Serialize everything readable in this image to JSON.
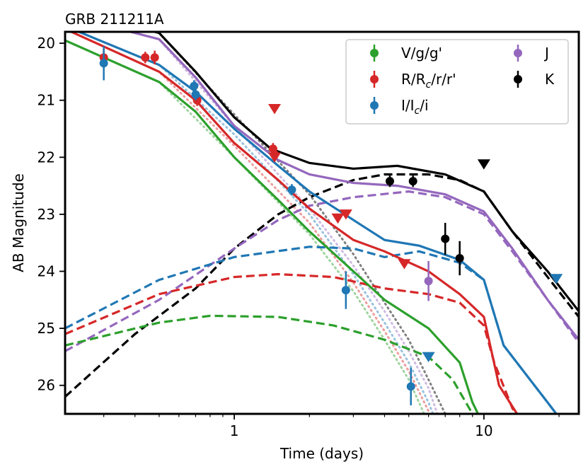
{
  "chart_data": {
    "type": "line",
    "title": "GRB 211211A",
    "xlabel": "Time (days)",
    "ylabel": "AB Magnitude",
    "xscale": "log",
    "xlim": [
      0.21,
      24
    ],
    "ylim": [
      26.5,
      19.8
    ],
    "x_ticks": [
      {
        "value": 1,
        "label": "1"
      },
      {
        "value": 10,
        "label": "10"
      }
    ],
    "y_ticks": [
      {
        "value": 20,
        "label": "20"
      },
      {
        "value": 21,
        "label": "21"
      },
      {
        "value": 22,
        "label": "22"
      },
      {
        "value": 23,
        "label": "23"
      },
      {
        "value": 24,
        "label": "24"
      },
      {
        "value": 25,
        "label": "25"
      },
      {
        "value": 26,
        "label": "26"
      }
    ],
    "grid": false,
    "legend_position": "top-right",
    "colors": {
      "V": "#2ca02c",
      "R": "#d62728",
      "I": "#1f77b4",
      "J": "#9467bd",
      "K": "#000000",
      "afterglow_dotted": "#808080"
    },
    "legend": [
      {
        "key": "V",
        "label": "V/g/g'"
      },
      {
        "key": "R",
        "label": "R/R",
        "sub": "c",
        "suffix": "/r/r'"
      },
      {
        "key": "I",
        "label": "I/I",
        "sub": "c",
        "suffix": "/i"
      },
      {
        "key": "J",
        "label": "J"
      },
      {
        "key": "K",
        "label": "K"
      }
    ],
    "total_curves": [
      {
        "key": "K",
        "points": [
          [
            0.21,
            19.4
          ],
          [
            0.5,
            19.82
          ],
          [
            0.7,
            20.5
          ],
          [
            1.0,
            21.3
          ],
          [
            1.4,
            21.85
          ],
          [
            2.0,
            22.1
          ],
          [
            3.0,
            22.2
          ],
          [
            4.5,
            22.15
          ],
          [
            7.0,
            22.3
          ],
          [
            10.0,
            22.6
          ],
          [
            13.0,
            23.3
          ],
          [
            18.0,
            24.0
          ],
          [
            24.0,
            24.7
          ]
        ]
      },
      {
        "key": "J",
        "points": [
          [
            0.21,
            19.5
          ],
          [
            0.5,
            19.93
          ],
          [
            0.7,
            20.6
          ],
          [
            1.0,
            21.45
          ],
          [
            1.5,
            22.05
          ],
          [
            2.0,
            22.3
          ],
          [
            3.0,
            22.45
          ],
          [
            4.5,
            22.5
          ],
          [
            7.0,
            22.65
          ],
          [
            10.0,
            22.95
          ],
          [
            13.0,
            23.6
          ],
          [
            18.0,
            24.5
          ],
          [
            24.0,
            25.2
          ]
        ]
      },
      {
        "key": "I",
        "points": [
          [
            0.21,
            19.7
          ],
          [
            0.5,
            20.38
          ],
          [
            0.7,
            20.85
          ],
          [
            1.0,
            21.5
          ],
          [
            1.5,
            22.15
          ],
          [
            2.0,
            22.6
          ],
          [
            3.0,
            23.1
          ],
          [
            4.0,
            23.45
          ],
          [
            5.5,
            23.55
          ],
          [
            8.0,
            23.8
          ],
          [
            10.0,
            24.15
          ],
          [
            12.0,
            25.3
          ],
          [
            18.0,
            26.3
          ],
          [
            22.0,
            26.8
          ]
        ]
      },
      {
        "key": "R",
        "points": [
          [
            0.21,
            19.75
          ],
          [
            0.5,
            20.5
          ],
          [
            0.7,
            21.0
          ],
          [
            1.0,
            21.75
          ],
          [
            1.5,
            22.4
          ],
          [
            2.0,
            22.9
          ],
          [
            3.0,
            23.45
          ],
          [
            4.0,
            23.65
          ],
          [
            6.0,
            24.0
          ],
          [
            8.0,
            24.4
          ],
          [
            10.0,
            24.8
          ],
          [
            11.5,
            26.0
          ],
          [
            15.0,
            26.8
          ]
        ]
      },
      {
        "key": "V",
        "points": [
          [
            0.21,
            19.95
          ],
          [
            0.5,
            20.68
          ],
          [
            0.7,
            21.2
          ],
          [
            1.0,
            22.0
          ],
          [
            1.5,
            22.75
          ],
          [
            2.0,
            23.3
          ],
          [
            3.0,
            24.0
          ],
          [
            4.0,
            24.5
          ],
          [
            6.0,
            25.0
          ],
          [
            8.0,
            25.6
          ],
          [
            9.0,
            26.3
          ],
          [
            10.5,
            26.9
          ]
        ]
      }
    ],
    "kilonova_curves": [
      {
        "key": "K",
        "points": [
          [
            0.21,
            26.2
          ],
          [
            0.4,
            25.1
          ],
          [
            0.7,
            24.3
          ],
          [
            1.0,
            23.6
          ],
          [
            1.5,
            23.0
          ],
          [
            2.0,
            22.7
          ],
          [
            3.0,
            22.4
          ],
          [
            4.0,
            22.3
          ],
          [
            6.0,
            22.3
          ],
          [
            8.0,
            22.4
          ],
          [
            10.0,
            22.6
          ],
          [
            13.0,
            23.3
          ],
          [
            18.0,
            24.1
          ],
          [
            24.0,
            24.8
          ]
        ]
      },
      {
        "key": "J",
        "points": [
          [
            0.21,
            25.4
          ],
          [
            0.5,
            24.5
          ],
          [
            1.0,
            23.6
          ],
          [
            1.5,
            23.1
          ],
          [
            2.0,
            22.85
          ],
          [
            3.0,
            22.7
          ],
          [
            5.0,
            22.6
          ],
          [
            7.0,
            22.7
          ],
          [
            10.0,
            23.0
          ],
          [
            13.0,
            23.65
          ],
          [
            18.0,
            24.5
          ],
          [
            24.0,
            25.25
          ]
        ]
      },
      {
        "key": "I",
        "points": [
          [
            0.21,
            25.0
          ],
          [
            0.5,
            24.15
          ],
          [
            1.0,
            23.75
          ],
          [
            2.0,
            23.57
          ],
          [
            3.0,
            23.6
          ],
          [
            4.0,
            23.75
          ],
          [
            5.5,
            23.65
          ],
          [
            8.0,
            23.85
          ],
          [
            10.0,
            24.15
          ],
          [
            12.0,
            25.3
          ],
          [
            18.0,
            26.3
          ],
          [
            22.0,
            26.8
          ]
        ]
      },
      {
        "key": "R",
        "points": [
          [
            0.21,
            25.1
          ],
          [
            0.5,
            24.4
          ],
          [
            1.0,
            24.1
          ],
          [
            1.5,
            24.05
          ],
          [
            2.5,
            24.1
          ],
          [
            4.0,
            24.3
          ],
          [
            6.0,
            24.4
          ],
          [
            8.0,
            24.55
          ],
          [
            10.0,
            24.95
          ],
          [
            11.0,
            25.6
          ],
          [
            13.0,
            26.4
          ],
          [
            15.0,
            26.8
          ]
        ]
      },
      {
        "key": "V",
        "points": [
          [
            0.21,
            25.3
          ],
          [
            0.5,
            24.9
          ],
          [
            0.8,
            24.78
          ],
          [
            1.5,
            24.8
          ],
          [
            2.5,
            24.95
          ],
          [
            4.0,
            25.2
          ],
          [
            6.0,
            25.5
          ],
          [
            7.5,
            25.9
          ],
          [
            9.0,
            26.5
          ],
          [
            10.0,
            26.9
          ]
        ]
      }
    ],
    "afterglow_curves": [
      {
        "key": "K",
        "points": [
          [
            0.21,
            19.4
          ],
          [
            0.5,
            19.82
          ],
          [
            1.0,
            21.25
          ],
          [
            2.0,
            22.65
          ],
          [
            3.0,
            23.7
          ],
          [
            4.0,
            24.55
          ],
          [
            5.0,
            25.2
          ],
          [
            6.0,
            25.9
          ],
          [
            7.0,
            26.5
          ],
          [
            8.0,
            27.0
          ]
        ]
      },
      {
        "key": "J",
        "points": [
          [
            0.21,
            19.5
          ],
          [
            0.5,
            19.93
          ],
          [
            1.0,
            21.45
          ],
          [
            2.0,
            22.9
          ],
          [
            3.0,
            23.9
          ],
          [
            4.0,
            24.7
          ],
          [
            5.0,
            25.4
          ],
          [
            6.0,
            26.05
          ],
          [
            7.0,
            26.9
          ]
        ]
      },
      {
        "key": "I",
        "points": [
          [
            0.21,
            19.7
          ],
          [
            0.5,
            20.38
          ],
          [
            1.0,
            21.6
          ],
          [
            2.0,
            23.0
          ],
          [
            3.0,
            24.05
          ],
          [
            4.0,
            24.9
          ],
          [
            5.0,
            25.6
          ],
          [
            6.0,
            26.3
          ],
          [
            6.8,
            26.9
          ]
        ]
      },
      {
        "key": "R",
        "points": [
          [
            0.21,
            19.75
          ],
          [
            0.5,
            20.5
          ],
          [
            1.0,
            21.8
          ],
          [
            2.0,
            23.15
          ],
          [
            3.0,
            24.2
          ],
          [
            4.0,
            25.05
          ],
          [
            5.0,
            25.75
          ],
          [
            6.0,
            26.45
          ],
          [
            6.6,
            26.9
          ]
        ]
      },
      {
        "key": "V",
        "points": [
          [
            0.21,
            19.95
          ],
          [
            0.5,
            20.68
          ],
          [
            1.0,
            22.0
          ],
          [
            2.0,
            23.35
          ],
          [
            3.0,
            24.35
          ],
          [
            4.0,
            25.2
          ],
          [
            5.0,
            25.9
          ],
          [
            5.9,
            26.6
          ],
          [
            6.3,
            26.9
          ]
        ]
      }
    ],
    "detections": [
      {
        "key": "R",
        "t": 0.3,
        "mag": 20.25,
        "err": 0.15
      },
      {
        "key": "R",
        "t": 0.44,
        "mag": 20.25,
        "err": 0.1
      },
      {
        "key": "R",
        "t": 0.48,
        "mag": 20.25,
        "err": 0.12
      },
      {
        "key": "R",
        "t": 0.71,
        "mag": 21.0,
        "err": 0.1
      },
      {
        "key": "R",
        "t": 1.43,
        "mag": 21.85,
        "err": 0.1
      },
      {
        "key": "R",
        "t": 1.45,
        "mag": 21.95,
        "err": 0.1
      },
      {
        "key": "I",
        "t": 0.3,
        "mag": 20.35,
        "err": 0.3
      },
      {
        "key": "I",
        "t": 0.69,
        "mag": 20.75,
        "err": 0.1
      },
      {
        "key": "I",
        "t": 0.7,
        "mag": 20.9,
        "err": 0.1
      },
      {
        "key": "I",
        "t": 1.7,
        "mag": 22.57,
        "err": 0.1
      },
      {
        "key": "I",
        "t": 2.8,
        "mag": 24.33,
        "err": 0.33
      },
      {
        "key": "I",
        "t": 5.1,
        "mag": 26.02,
        "err": 0.33
      },
      {
        "key": "J",
        "t": 6.0,
        "mag": 24.17,
        "err": 0.35
      },
      {
        "key": "K",
        "t": 4.2,
        "mag": 22.42,
        "err": 0.1
      },
      {
        "key": "K",
        "t": 5.2,
        "mag": 22.42,
        "err": 0.1
      },
      {
        "key": "K",
        "t": 7.0,
        "mag": 23.43,
        "err": 0.28
      },
      {
        "key": "K",
        "t": 8.0,
        "mag": 23.77,
        "err": 0.3
      }
    ],
    "upper_limits": [
      {
        "key": "R",
        "t": 1.45,
        "mag": 21.15
      },
      {
        "key": "R",
        "t": 1.45,
        "mag": 22.0
      },
      {
        "key": "R",
        "t": 2.6,
        "mag": 23.07
      },
      {
        "key": "R",
        "t": 2.8,
        "mag": 23.0
      },
      {
        "key": "R",
        "t": 4.8,
        "mag": 23.87
      },
      {
        "key": "I",
        "t": 6.0,
        "mag": 25.5
      },
      {
        "key": "I",
        "t": 19.5,
        "mag": 24.13
      },
      {
        "key": "K",
        "t": 10.0,
        "mag": 22.12
      }
    ]
  }
}
